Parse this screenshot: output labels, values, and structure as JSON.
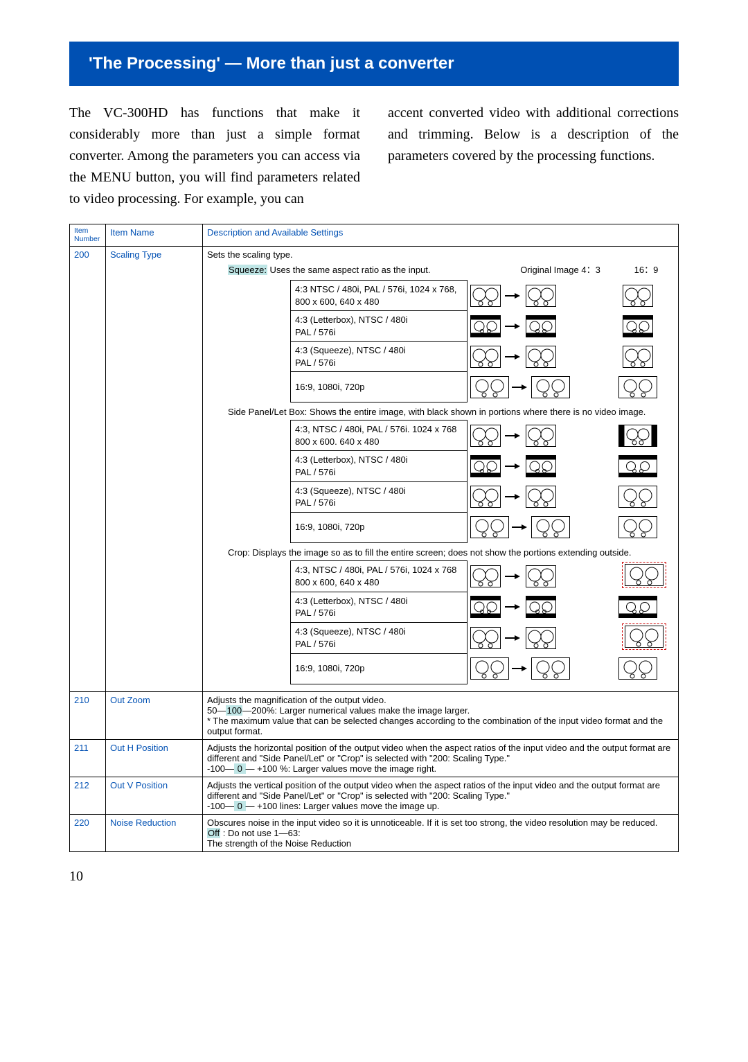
{
  "title": "'The Processing' — More than just a converter",
  "intro_left": "The VC-300HD has functions that make it considerably more than just a simple format converter. Among the parameters you can access via the MENU button, you will find parameters related to video processing. For example, you can",
  "intro_right": "accent converted video with additional corrections and trimming. Below is a description of the parameters covered by the processing functions.",
  "headers": {
    "num": "Item Number",
    "name": "Item Name",
    "desc": "Description and Available Settings"
  },
  "col_hdr_orig": "Original Image 4：3",
  "col_hdr_169": "16：9",
  "scaling": {
    "num": "200",
    "name": "Scaling Type",
    "lead": "Sets the scaling type.",
    "squeeze_label": "Squeeze:",
    "squeeze_text": " Uses the same aspect ratio as the input.",
    "sidepanel_label": "Side Panel/Let Box:",
    "sidepanel_text": " Shows the entire image, with black shown in portions where there is no video image.",
    "crop_label": "Crop:",
    "crop_text": " Displays the image so as to fill the entire screen; does not show the portions extending outside.",
    "rows": [
      {
        "fmt": "4:3 NTSC / 480i, PAL / 576i, 1024 x 768, 800 x 600, 640 x 480"
      },
      {
        "fmt": "4:3 (Letterbox),  NTSC / 480i\nPAL / 576i"
      },
      {
        "fmt": "4:3 (Squeeze), NTSC / 480i\nPAL / 576i"
      },
      {
        "fmt": "16:9, 1080i, 720p"
      }
    ],
    "rows2": [
      {
        "fmt": "4:3, NTSC / 480i, PAL / 576i. 1024 x 768\n800 x 600. 640 x 480"
      },
      {
        "fmt": "4:3 (Letterbox), NTSC / 480i\nPAL / 576i"
      },
      {
        "fmt": "4:3 (Squeeze), NTSC / 480i\nPAL / 576i"
      },
      {
        "fmt": "16:9, 1080i, 720p"
      }
    ],
    "rows3": [
      {
        "fmt": "4:3, NTSC / 480i, PAL / 576i, 1024 x 768\n800 x 600, 640 x 480"
      },
      {
        "fmt": "4:3 (Letterbox), NTSC / 480i\nPAL / 576i"
      },
      {
        "fmt": "4:3 (Squeeze), NTSC / 480i\nPAL / 576i"
      },
      {
        "fmt": "16:9, 1080i, 720p"
      }
    ]
  },
  "items": [
    {
      "num": "210",
      "name": "Out Zoom",
      "desc_pre": "Adjusts the magnification of the output video.\n50―",
      "desc_hl": "100",
      "desc_post": "―200%: Larger numerical values make the image larger.\n* The maximum value that can be selected changes according to the combination of the input video format and the output format."
    },
    {
      "num": "211",
      "name": "Out H Position",
      "desc_pre": "Adjusts the horizontal position of the output video when the aspect ratios of the input video and the output format are different and \"Side Panel/Let\" or \"Crop\" is selected with \"200: Scaling Type.\"\n-100―",
      "desc_hl": " 0 ",
      "desc_post": "― +100 %: Larger values move the image right."
    },
    {
      "num": "212",
      "name": "Out V Position",
      "desc_pre": "Adjusts the vertical position of the output video when the aspect ratios of the input video and the output format are different and \"Side Panel/Let\" or \"Crop\" is selected with \"200: Scaling Type.\"\n-100―",
      "desc_hl": " 0 ",
      "desc_post": "― +100 lines: Larger values move the image up."
    },
    {
      "num": "220",
      "name": "Noise Reduction",
      "desc_pre": "Obscures noise in the input video so it is unnoticeable. If it is set too strong, the video resolution may be reduced.\n",
      "desc_hl": "Off",
      "desc_post": " : Do not use 1―63:\nThe strength of the Noise Reduction"
    }
  ],
  "page_number": "10",
  "colors": {
    "header_bg": "#0050b3",
    "highlight": "#bfe6e6",
    "crop_border": "#c00"
  }
}
